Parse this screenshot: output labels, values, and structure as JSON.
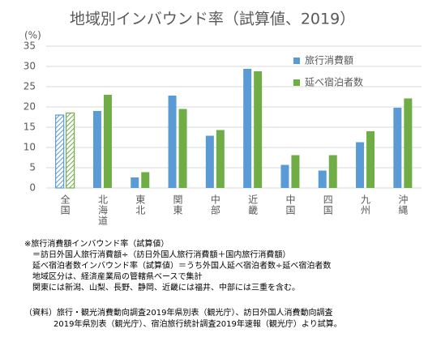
{
  "chart_data": {
    "type": "bar",
    "title": "地域別インバウンド率（試算値、2019）",
    "y_unit": "(%)",
    "categories": [
      "全国",
      "北海道",
      "東北",
      "関東",
      "中部",
      "近畿",
      "中国",
      "四国",
      "九州",
      "沖縄"
    ],
    "series": [
      {
        "name": "旅行消費額",
        "color": "#5b9bd5",
        "values": [
          18,
          19,
          2.6,
          22.8,
          12.9,
          29.4,
          5.7,
          4.3,
          11.3,
          19.8
        ]
      },
      {
        "name": "延べ宿泊者数",
        "color": "#70ad47",
        "values": [
          18.5,
          23,
          3.9,
          19.5,
          14.3,
          28.8,
          8.1,
          8.1,
          14,
          22.1
        ]
      }
    ],
    "hatch_first": true,
    "ylim": [
      0,
      35
    ],
    "yticks": [
      0,
      5,
      10,
      15,
      20,
      25,
      30,
      35
    ],
    "grid": true,
    "notes": [
      "※旅行消費額インバウンド率（試算値）",
      "＝訪日外国人旅行消費額÷（訪日外国人旅行消費額＋国内旅行消費額）",
      "延べ宿泊者数インバウンド率（試算値）＝うち外国人延べ宿泊者数÷延べ宿泊者数",
      "地域区分は、経済産業局の管轄県ベースで集計",
      "関東には新潟、山梨、長野、静岡、近畿には福井、中部には三重を含む。"
    ],
    "source": [
      "（資料）旅行・観光消費動向調査2019年県別表（観光庁）、訪日外国人消費動向調査",
      "2019年県別表（観光庁）、宿泊旅行統計調査2019年速報（観光庁）より試算。"
    ]
  }
}
